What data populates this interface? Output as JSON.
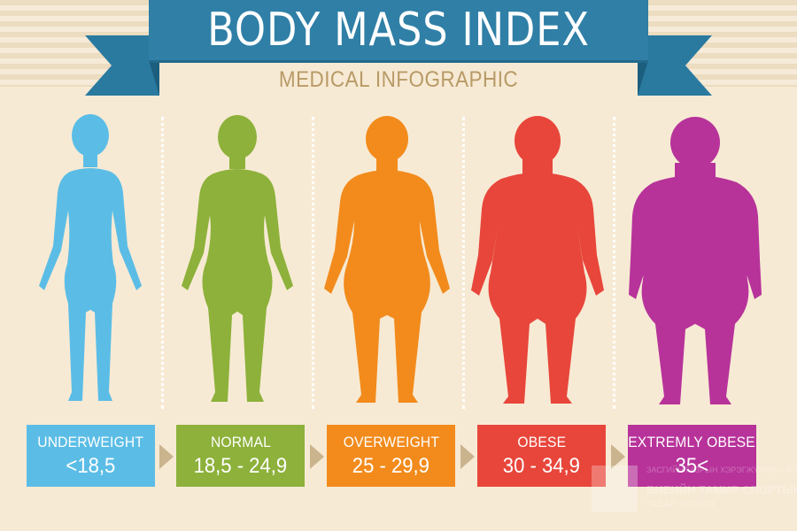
{
  "header": {
    "title": "BODY MASS INDEX",
    "subtitle": "MEDICAL INFOGRAPHIC",
    "ribbon_color": "#2f7fa6"
  },
  "categories": [
    {
      "name": "UNDERWEIGHT",
      "range": "<18,5",
      "color": "#5bbde6",
      "figure_icon": "thin-female-silhouette-icon"
    },
    {
      "name": "NORMAL",
      "range": "18,5 - 24,9",
      "color": "#8db13a",
      "figure_icon": "normal-female-silhouette-icon"
    },
    {
      "name": "OVERWEIGHT",
      "range": "25 - 29,9",
      "color": "#f28b1c",
      "figure_icon": "overweight-female-silhouette-icon"
    },
    {
      "name": "OBESE",
      "range": "30 - 34,9",
      "color": "#e8463b",
      "figure_icon": "obese-female-silhouette-icon"
    },
    {
      "name": "EXTREMLY OBESE",
      "range": "35<",
      "color": "#b7339a",
      "figure_icon": "extremely-obese-female-silhouette-icon"
    }
  ],
  "watermark": {
    "line1": "ЗАСГИЙН ГАЗРЫН ХЭРЭГЖҮҮЛЭГЧ АГЕНТЛАГ",
    "line2": "БИЕИЙН ТАМИР СПОРТЫН",
    "line3": "ГАЗАР ХОРОО"
  }
}
